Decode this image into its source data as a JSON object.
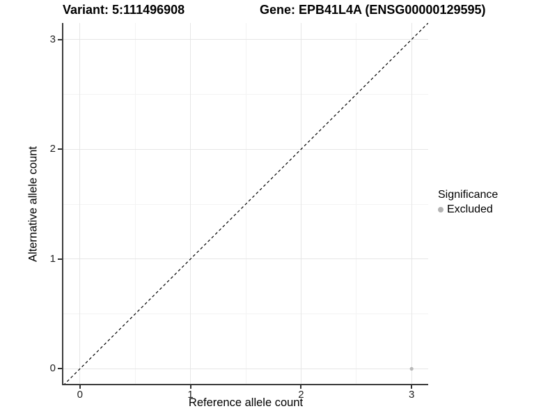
{
  "chart_data": {
    "type": "scatter",
    "title_left": "Variant: 5:111496908",
    "title_right": "Gene: EPB41L4A (ENSG00000129595)",
    "xlabel": "Reference allele count",
    "ylabel": "Alternative allele count",
    "xlim": [
      -0.15,
      3.15
    ],
    "ylim": [
      -0.15,
      3.15
    ],
    "xticks": [
      0,
      1,
      2,
      3
    ],
    "yticks": [
      0,
      1,
      2,
      3
    ],
    "minor_gridlines": [
      0.5,
      1.5,
      2.5
    ],
    "grid": "on",
    "legend_position": "right",
    "series": [
      {
        "name": "Excluded",
        "color": "#b8b8b8",
        "point_radius": 2.6,
        "points": [
          {
            "x": 3,
            "y": 0
          }
        ]
      }
    ],
    "identity_line": {
      "style": "dashed",
      "color": "#000000",
      "dash": "4,3.5",
      "from": [
        -0.15,
        -0.15
      ],
      "to": [
        3.15,
        3.15
      ]
    },
    "legend": {
      "title": "Significance",
      "entries": [
        {
          "label": "Excluded",
          "color": "#b3b3b3"
        }
      ]
    },
    "colors": {
      "grid_major": "#e6e6e6",
      "grid_minor": "#f3f3f3",
      "axis_line": "#3b3b3b",
      "tick_label": "#222222",
      "background": "#ffffff"
    }
  }
}
